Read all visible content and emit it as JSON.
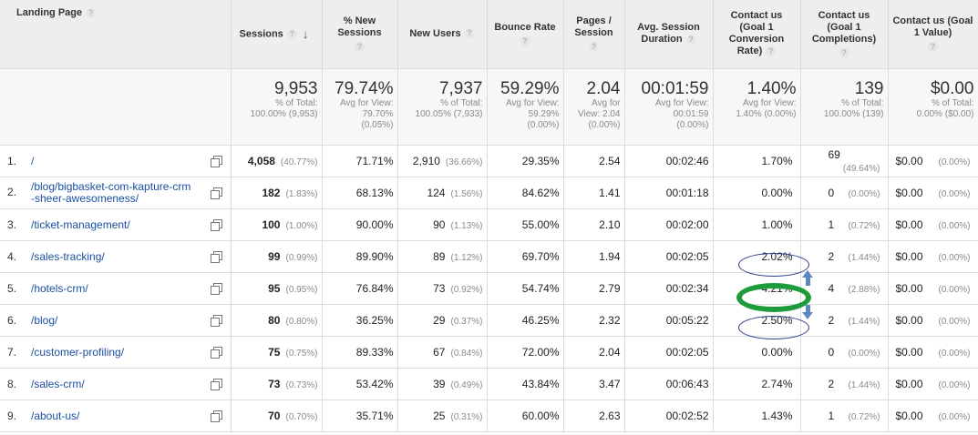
{
  "headers": {
    "landing_page": "Landing Page",
    "sessions": "Sessions",
    "new_sessions": "% New Sessions",
    "new_users": "New Users",
    "bounce_rate": "Bounce Rate",
    "pages_session": "Pages / Session",
    "avg_session": "Avg. Session Duration",
    "conv_rate": "Contact us (Goal 1 Conversion Rate)",
    "completions": "Contact us (Goal 1 Completions)",
    "goal_value": "Contact us (Goal 1 Value)"
  },
  "totals": {
    "sessions": {
      "value": "9,953",
      "sub1": "% of Total:",
      "sub2": "100.00% (9,953)"
    },
    "new_sessions": {
      "value": "79.74%",
      "sub1": "Avg for View:",
      "sub2": "79.70%",
      "sub3": "(0.05%)"
    },
    "new_users": {
      "value": "7,937",
      "sub1": "% of Total:",
      "sub2": "100.05% (7,933)"
    },
    "bounce_rate": {
      "value": "59.29%",
      "sub1": "Avg for View:",
      "sub2": "59.29%",
      "sub3": "(0.00%)"
    },
    "pages_session": {
      "value": "2.04",
      "sub1": "Avg for",
      "sub2": "View: 2.04",
      "sub3": "(0.00%)"
    },
    "avg_session": {
      "value": "00:01:59",
      "sub1": "Avg for View:",
      "sub2": "00:01:59",
      "sub3": "(0.00%)"
    },
    "conv_rate": {
      "value": "1.40%",
      "sub1": "Avg for View:",
      "sub2": "1.40% (0.00%)"
    },
    "completions": {
      "value": "139",
      "sub1": "% of Total:",
      "sub2": "100.00% (139)"
    },
    "goal_value": {
      "value": "$0.00",
      "sub1": "% of Total:",
      "sub2": "0.00% ($0.00)"
    }
  },
  "rows": [
    {
      "index": "1.",
      "page": "/",
      "page2": "",
      "sessions": "4,058",
      "sessions_pct": "(40.77%)",
      "new_sessions": "71.71%",
      "new_users": "2,910",
      "new_users_pct": "(36.66%)",
      "bounce": "29.35%",
      "pages": "2.54",
      "duration": "00:02:46",
      "conv": "1.70%",
      "comp": "69",
      "comp_pct": "(49.64%)",
      "value": "$0.00",
      "value_pct": "(0.00%)"
    },
    {
      "index": "2.",
      "page": "/blog/bigbasket-com-kapture-crm",
      "page2": "-sheer-awesomeness/",
      "sessions": "182",
      "sessions_pct": "(1.83%)",
      "new_sessions": "68.13%",
      "new_users": "124",
      "new_users_pct": "(1.56%)",
      "bounce": "84.62%",
      "pages": "1.41",
      "duration": "00:01:18",
      "conv": "0.00%",
      "comp": "0",
      "comp_pct": "(0.00%)",
      "value": "$0.00",
      "value_pct": "(0.00%)"
    },
    {
      "index": "3.",
      "page": "/ticket-management/",
      "page2": "",
      "sessions": "100",
      "sessions_pct": "(1.00%)",
      "new_sessions": "90.00%",
      "new_users": "90",
      "new_users_pct": "(1.13%)",
      "bounce": "55.00%",
      "pages": "2.10",
      "duration": "00:02:00",
      "conv": "1.00%",
      "comp": "1",
      "comp_pct": "(0.72%)",
      "value": "$0.00",
      "value_pct": "(0.00%)"
    },
    {
      "index": "4.",
      "page": "/sales-tracking/",
      "page2": "",
      "sessions": "99",
      "sessions_pct": "(0.99%)",
      "new_sessions": "89.90%",
      "new_users": "89",
      "new_users_pct": "(1.12%)",
      "bounce": "69.70%",
      "pages": "1.94",
      "duration": "00:02:05",
      "conv": "2.02%",
      "comp": "2",
      "comp_pct": "(1.44%)",
      "value": "$0.00",
      "value_pct": "(0.00%)"
    },
    {
      "index": "5.",
      "page": "/hotels-crm/",
      "page2": "",
      "sessions": "95",
      "sessions_pct": "(0.95%)",
      "new_sessions": "76.84%",
      "new_users": "73",
      "new_users_pct": "(0.92%)",
      "bounce": "54.74%",
      "pages": "2.79",
      "duration": "00:02:34",
      "conv": "4.21%",
      "comp": "4",
      "comp_pct": "(2.88%)",
      "value": "$0.00",
      "value_pct": "(0.00%)"
    },
    {
      "index": "6.",
      "page": "/blog/",
      "page2": "",
      "sessions": "80",
      "sessions_pct": "(0.80%)",
      "new_sessions": "36.25%",
      "new_users": "29",
      "new_users_pct": "(0.37%)",
      "bounce": "46.25%",
      "pages": "2.32",
      "duration": "00:05:22",
      "conv": "2.50%",
      "comp": "2",
      "comp_pct": "(1.44%)",
      "value": "$0.00",
      "value_pct": "(0.00%)"
    },
    {
      "index": "7.",
      "page": "/customer-profiling/",
      "page2": "",
      "sessions": "75",
      "sessions_pct": "(0.75%)",
      "new_sessions": "89.33%",
      "new_users": "67",
      "new_users_pct": "(0.84%)",
      "bounce": "72.00%",
      "pages": "2.04",
      "duration": "00:02:05",
      "conv": "0.00%",
      "comp": "0",
      "comp_pct": "(0.00%)",
      "value": "$0.00",
      "value_pct": "(0.00%)"
    },
    {
      "index": "8.",
      "page": "/sales-crm/",
      "page2": "",
      "sessions": "73",
      "sessions_pct": "(0.73%)",
      "new_sessions": "53.42%",
      "new_users": "39",
      "new_users_pct": "(0.49%)",
      "bounce": "43.84%",
      "pages": "3.47",
      "duration": "00:06:43",
      "conv": "2.74%",
      "comp": "2",
      "comp_pct": "(1.44%)",
      "value": "$0.00",
      "value_pct": "(0.00%)"
    },
    {
      "index": "9.",
      "page": "/about-us/",
      "page2": "",
      "sessions": "70",
      "sessions_pct": "(0.70%)",
      "new_sessions": "35.71%",
      "new_users": "25",
      "new_users_pct": "(0.31%)",
      "bounce": "60.00%",
      "pages": "2.63",
      "duration": "00:02:52",
      "conv": "1.43%",
      "comp": "1",
      "comp_pct": "(0.72%)",
      "value": "$0.00",
      "value_pct": "(0.00%)"
    }
  ],
  "annotation_colors": {
    "oval": "#2c3b8f",
    "highlight": "#1e9c3c",
    "arrow": "#5b86c4"
  }
}
